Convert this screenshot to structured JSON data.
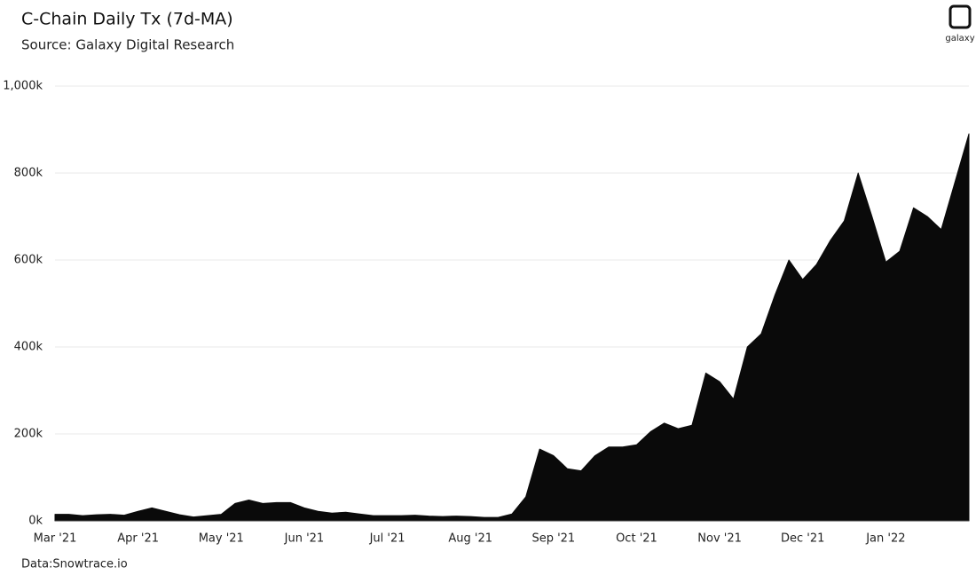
{
  "logo": "galaxy",
  "chart_data": {
    "type": "area",
    "title": "C-Chain Daily Tx (7d-MA)",
    "subtitle": "Source: Galaxy Digital Research",
    "note": "Data:Snowtrace.io",
    "color": "#0a0a0a",
    "grid": true,
    "categories": [
      "Mar '21",
      null,
      null,
      null,
      null,
      null,
      "Apr '21",
      null,
      null,
      null,
      null,
      null,
      "May '21",
      null,
      null,
      null,
      null,
      null,
      "Jun '21",
      null,
      null,
      null,
      null,
      null,
      "Jul '21",
      null,
      null,
      null,
      null,
      null,
      "Aug '21",
      null,
      null,
      null,
      null,
      null,
      "Sep '21",
      null,
      null,
      null,
      null,
      null,
      "Oct '21",
      null,
      null,
      null,
      null,
      null,
      "Nov '21",
      null,
      null,
      null,
      null,
      null,
      "Dec '21",
      null,
      null,
      null,
      null,
      null,
      "Jan '22",
      null,
      null,
      null,
      null,
      null,
      null
    ],
    "values": [
      15000,
      15000,
      12000,
      14000,
      15000,
      13000,
      22000,
      30000,
      22000,
      14000,
      9000,
      12000,
      15000,
      40000,
      48000,
      40000,
      42000,
      42000,
      30000,
      22000,
      18000,
      20000,
      16000,
      12000,
      12000,
      12000,
      13000,
      11000,
      10000,
      11000,
      10000,
      8000,
      8000,
      16000,
      55000,
      165000,
      150000,
      120000,
      115000,
      150000,
      170000,
      170000,
      175000,
      205000,
      225000,
      212000,
      220000,
      340000,
      320000,
      280000,
      400000,
      430000,
      520000,
      600000,
      555000,
      590000,
      645000,
      690000,
      800000,
      700000,
      595000,
      620000,
      720000,
      700000,
      670000,
      780000,
      890000
    ],
    "ylim": [
      0,
      1000000
    ],
    "yticks": [
      {
        "value": 0,
        "label": "0k"
      },
      {
        "value": 200000,
        "label": "200k"
      },
      {
        "value": 400000,
        "label": "400k"
      },
      {
        "value": 600000,
        "label": "600k"
      },
      {
        "value": 800000,
        "label": "800k"
      },
      {
        "value": 1000000,
        "label": "1,000k"
      }
    ]
  }
}
